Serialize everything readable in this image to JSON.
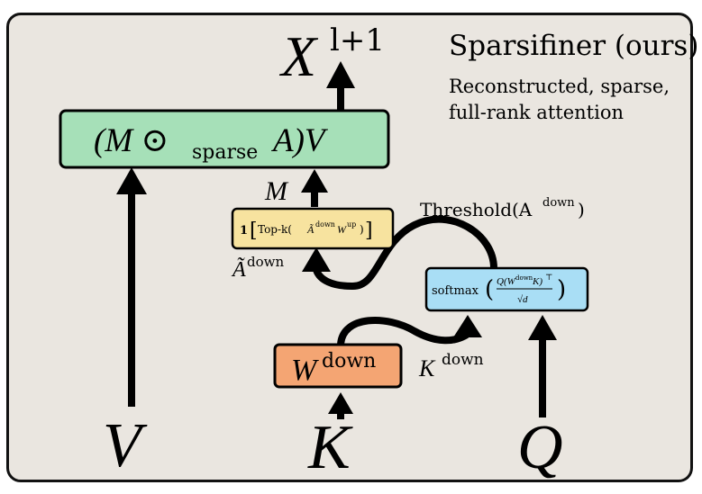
{
  "header": {
    "title": "Sparsifiner (ours)",
    "subtitle_line1": "Reconstructed, sparse,",
    "subtitle_line2": "full-rank attention"
  },
  "output": {
    "symbol": "X",
    "superscript": "l+1"
  },
  "nodes": {
    "main": {
      "prefix": "(M ⊙",
      "subscript": "sparse",
      "suffix": "A)V",
      "color": "#a6e0b8"
    },
    "topk": {
      "bold_one": "1",
      "label": "Top-k(",
      "a_sym": "Ã",
      "a_sup": "down",
      "w_sym": "W",
      "w_sup": "up",
      "close": ")",
      "color": "#f7e39f"
    },
    "softmax": {
      "func": "softmax",
      "numer": "Q(W",
      "numer_sup": "down",
      "numer_k": "K)",
      "transpose": "⊤",
      "denom": "√d",
      "color": "#a9def5"
    },
    "wdown": {
      "symbol": "W",
      "superscript": "down",
      "color": "#f4a573"
    }
  },
  "labels": {
    "m": "M",
    "threshold": "Threshold(A",
    "threshold_sup": "down",
    "threshold_close": ")",
    "a_down": "Ã",
    "a_down_sup": "down",
    "k_down": "K",
    "k_down_sup": "down"
  },
  "inputs": {
    "v": "V",
    "k": "K",
    "q": "Q"
  }
}
